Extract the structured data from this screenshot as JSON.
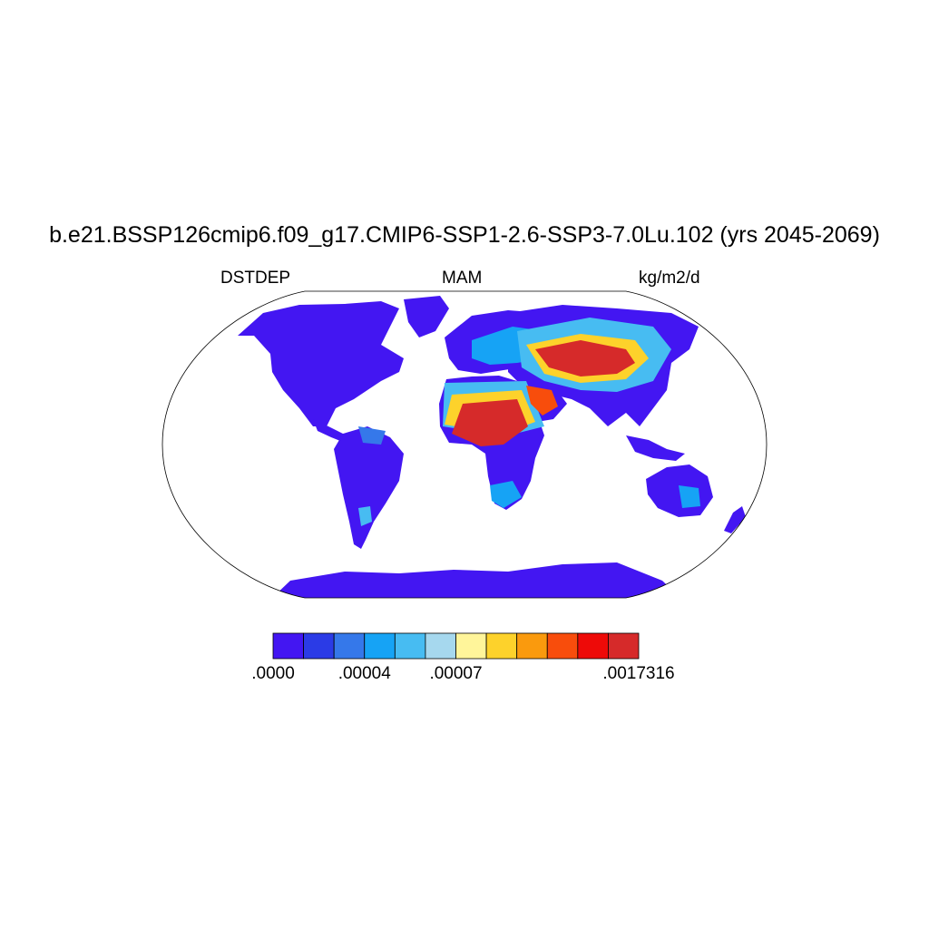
{
  "title": "b.e21.BSSP126cmip6.f09_g17.CMIP6-SSP1-2.6-SSP3-7.0Lu.102 (yrs 2045-2069)",
  "left_label": "DSTDEP",
  "center_label": "MAM",
  "right_label": "kg/m2/d",
  "colorbar": {
    "colors": [
      "#4316f2",
      "#2b3be6",
      "#3578ea",
      "#16a3f5",
      "#47bcf2",
      "#a6d8ee",
      "#fff59a",
      "#fdd22b",
      "#fa9a0d",
      "#f84d0c",
      "#ee0a08",
      "#d62a2a"
    ],
    "tick_labels": [
      ".0000",
      ".00004",
      ".00007",
      ".0017316"
    ],
    "tick_boundaries": [
      0,
      3,
      6,
      12
    ]
  },
  "legend_colors": {
    "low": "#4316f2",
    "mid_low": "#16a3f5",
    "mid": "#fdd22b",
    "high": "#d62a2a"
  }
}
